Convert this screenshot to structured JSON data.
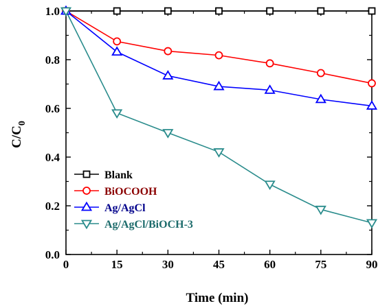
{
  "chart_data": {
    "type": "line",
    "xlabel": "Time (min)",
    "ylabel": "C/C",
    "ylabel_sub": "0",
    "xlim": [
      0,
      90
    ],
    "ylim": [
      0.0,
      1.0
    ],
    "x_ticks": [
      "0",
      "15",
      "30",
      "45",
      "60",
      "75",
      "90"
    ],
    "y_ticks": [
      "0.0",
      "0.2",
      "0.4",
      "0.6",
      "0.8",
      "1.0"
    ],
    "grid": false,
    "legend_position": "lower-left",
    "x": [
      0,
      15,
      30,
      45,
      60,
      75,
      90
    ],
    "series": [
      {
        "name": "Blank",
        "marker": "square",
        "color": "#000000",
        "values": [
          1.0,
          1.0,
          1.0,
          1.0,
          1.0,
          1.0,
          1.0
        ]
      },
      {
        "name": "BiOCOOH",
        "marker": "circle",
        "color": "#ff0000",
        "text_color": "#8b0000",
        "values": [
          1.0,
          0.875,
          0.835,
          0.818,
          0.785,
          0.745,
          0.703
        ]
      },
      {
        "name": "Ag/AgCl",
        "marker": "triangle-up",
        "color": "#0000ff",
        "text_color": "#00008b",
        "values": [
          1.0,
          0.832,
          0.734,
          0.69,
          0.675,
          0.637,
          0.61
        ]
      },
      {
        "name": "Ag/AgCl/BiOCH-3",
        "marker": "triangle-down",
        "color": "#2a8c8c",
        "text_color": "#1c6b6b",
        "values": [
          1.0,
          0.581,
          0.5,
          0.421,
          0.288,
          0.185,
          0.13
        ]
      }
    ]
  }
}
